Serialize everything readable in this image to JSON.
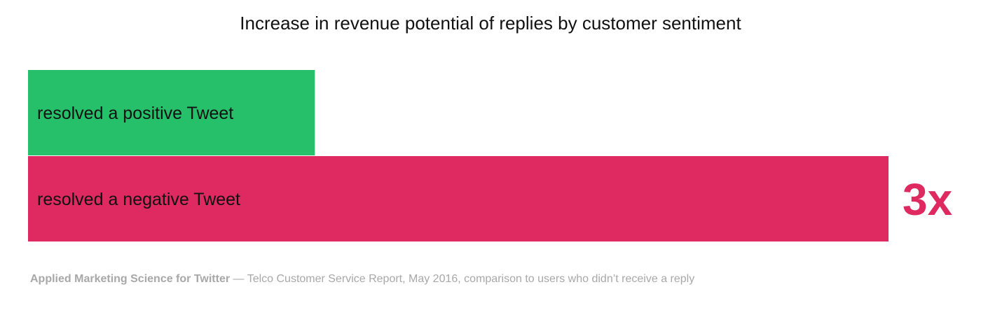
{
  "chart_data": {
    "type": "bar",
    "orientation": "horizontal",
    "title": "Increase in revenue potential of replies by customer sentiment",
    "categories": [
      "resolved a positive Tweet",
      "resolved a negative Tweet"
    ],
    "values": [
      1,
      3
    ],
    "value_labels": [
      "",
      "3x"
    ],
    "colors": [
      "#27c06a",
      "#de2a61"
    ],
    "label_color": "#111111",
    "xlabel": "",
    "ylabel": "",
    "grid": false,
    "legend": "none"
  },
  "source": {
    "org": "Applied Marketing Science for Twitter",
    "separator": " — ",
    "text": "Telco Customer Service Report, May 2016, comparison to users who didn’t receive a reply"
  }
}
